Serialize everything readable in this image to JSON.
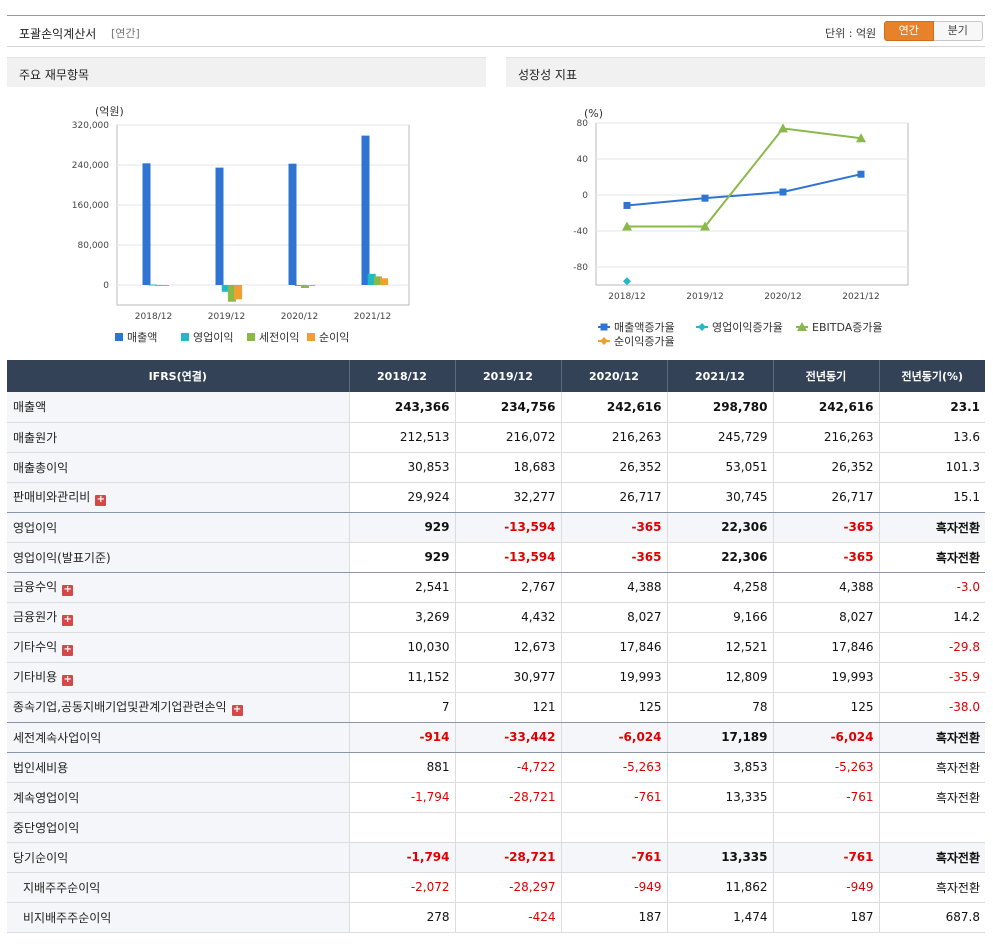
{
  "header": {
    "title": "포괄손익계산서",
    "subtitle": "[연간]",
    "unit": "단위 : 억원",
    "btn_annual": "연간",
    "btn_quarter": "분기"
  },
  "panels": {
    "left_title": "주요 재무항목",
    "right_title": "성장성 지표"
  },
  "chart_data": [
    {
      "type": "bar",
      "ylabel": "(억원)",
      "ylim": [
        -40000,
        320000
      ],
      "yticks": [
        "320,000",
        "240,000",
        "160,000",
        "80,000",
        "0"
      ],
      "categories": [
        "2018/12",
        "2019/12",
        "2020/12",
        "2021/12"
      ],
      "legend_placement": "bottom",
      "series": [
        {
          "name": "매출액",
          "color": "#2f74d0",
          "values": [
            243366,
            234756,
            242616,
            298780
          ]
        },
        {
          "name": "영업이익",
          "color": "#22b8c8",
          "values": [
            929,
            -13594,
            -365,
            22306
          ]
        },
        {
          "name": "세전이익",
          "color": "#8ab84a",
          "values": [
            -914,
            -33442,
            -6024,
            17189
          ]
        },
        {
          "name": "순이익",
          "color": "#f0a030",
          "values": [
            -1794,
            -28721,
            -761,
            13335
          ]
        }
      ]
    },
    {
      "type": "line",
      "ylabel": "(%)",
      "ylim": [
        -100,
        80
      ],
      "yticks": [
        "80",
        "40",
        "0",
        "-40",
        "-80"
      ],
      "categories": [
        "2018/12",
        "2019/12",
        "2020/12",
        "2021/12"
      ],
      "legend_placement": "bottom",
      "series": [
        {
          "name": "매출액증가율",
          "color": "#2f74d0",
          "marker": "square",
          "values": [
            -11.6,
            -3.5,
            3.3,
            23.1
          ]
        },
        {
          "name": "영업이익증가율",
          "color": "#22b8c8",
          "marker": "diamond",
          "values": [
            -95.8,
            null,
            null,
            null
          ]
        },
        {
          "name": "EBITDA증가율",
          "color": "#8ab84a",
          "marker": "triangle",
          "values": [
            -35.0,
            -35.0,
            74.0,
            63.0
          ]
        },
        {
          "name": "순이익증가율",
          "color": "#f0a030",
          "marker": "diamond",
          "values": [
            null,
            null,
            null,
            null
          ]
        }
      ]
    }
  ],
  "table": {
    "columns": [
      "IFRS(연결)",
      "2018/12",
      "2019/12",
      "2020/12",
      "2021/12",
      "전년동기",
      "전년동기(%)"
    ],
    "rows": [
      {
        "label": "매출액",
        "values": [
          "243,366",
          "234,756",
          "242,616",
          "298,780",
          "242,616",
          "23.1"
        ],
        "bold": true,
        "plus": false
      },
      {
        "label": "매출원가",
        "values": [
          "212,513",
          "216,072",
          "216,263",
          "245,729",
          "216,263",
          "13.6"
        ],
        "plus": false
      },
      {
        "label": "매출총이익",
        "values": [
          "30,853",
          "18,683",
          "26,352",
          "53,051",
          "26,352",
          "101.3"
        ],
        "plus": false
      },
      {
        "label": "판매비와관리비",
        "values": [
          "29,924",
          "32,277",
          "26,717",
          "30,745",
          "26,717",
          "15.1"
        ],
        "plus": true
      },
      {
        "label": "영업이익",
        "values": [
          "929",
          "-13,594",
          "-365",
          "22,306",
          "-365",
          "흑자전환"
        ],
        "bold": true,
        "hl": true,
        "plus": false
      },
      {
        "label": "영업이익(발표기준)",
        "values": [
          "929",
          "-13,594",
          "-365",
          "22,306",
          "-365",
          "흑자전환"
        ],
        "bold": true,
        "plus": false
      },
      {
        "label": "금융수익",
        "values": [
          "2,541",
          "2,767",
          "4,388",
          "4,258",
          "4,388",
          "-3.0"
        ],
        "plus": true
      },
      {
        "label": "금융원가",
        "values": [
          "3,269",
          "4,432",
          "8,027",
          "9,166",
          "8,027",
          "14.2"
        ],
        "plus": true
      },
      {
        "label": "기타수익",
        "values": [
          "10,030",
          "12,673",
          "17,846",
          "12,521",
          "17,846",
          "-29.8"
        ],
        "plus": true
      },
      {
        "label": "기타비용",
        "values": [
          "11,152",
          "30,977",
          "19,993",
          "12,809",
          "19,993",
          "-35.9"
        ],
        "plus": true
      },
      {
        "label": "종속기업,공동지배기업및관계기업관련손익",
        "values": [
          "7",
          "121",
          "125",
          "78",
          "125",
          "-38.0"
        ],
        "plus": true
      },
      {
        "label": "세전계속사업이익",
        "values": [
          "-914",
          "-33,442",
          "-6,024",
          "17,189",
          "-6,024",
          "흑자전환"
        ],
        "bold": true,
        "hl": true,
        "plus": false
      },
      {
        "label": "법인세비용",
        "values": [
          "881",
          "-4,722",
          "-5,263",
          "3,853",
          "-5,263",
          "흑자전환"
        ],
        "plus": false
      },
      {
        "label": "계속영업이익",
        "values": [
          "-1,794",
          "-28,721",
          "-761",
          "13,335",
          "-761",
          "흑자전환"
        ],
        "plus": false
      },
      {
        "label": "중단영업이익",
        "values": [
          "",
          "",
          "",
          "",
          "",
          ""
        ],
        "plus": false
      },
      {
        "label": "당기순이익",
        "values": [
          "-1,794",
          "-28,721",
          "-761",
          "13,335",
          "-761",
          "흑자전환"
        ],
        "bold": true,
        "hl": true,
        "plus": false
      },
      {
        "label": "지배주주순이익",
        "values": [
          "-2,072",
          "-28,297",
          "-949",
          "11,862",
          "-949",
          "흑자전환"
        ],
        "indent": true,
        "plus": false
      },
      {
        "label": "비지배주주순이익",
        "values": [
          "278",
          "-424",
          "187",
          "1,474",
          "187",
          "687.8"
        ],
        "indent": true,
        "plus": false
      }
    ]
  }
}
